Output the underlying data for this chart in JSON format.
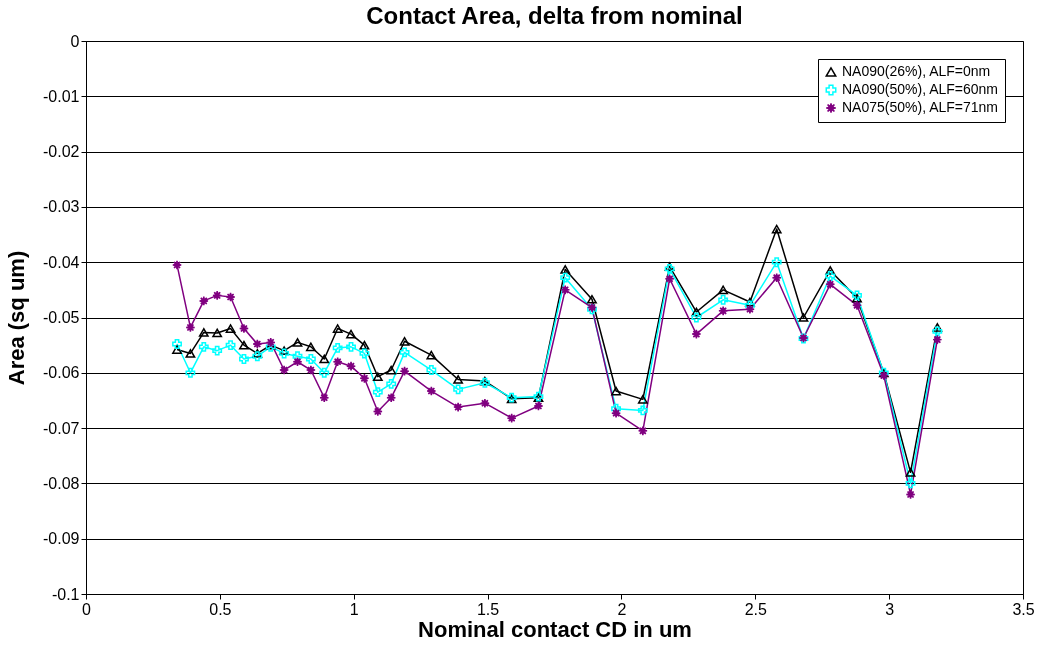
{
  "chart_data": {
    "type": "line",
    "title": "Contact Area, delta from nominal",
    "xlabel": "Nominal contact CD in um",
    "ylabel": "Area (sq um)",
    "x": [
      0.34,
      0.39,
      0.44,
      0.49,
      0.54,
      0.59,
      0.64,
      0.69,
      0.74,
      0.79,
      0.84,
      0.89,
      0.94,
      0.99,
      1.04,
      1.09,
      1.14,
      1.19,
      1.29,
      1.39,
      1.49,
      1.59,
      1.69,
      1.79,
      1.89,
      1.98,
      2.08,
      2.18,
      2.28,
      2.38,
      2.48,
      2.58,
      2.68,
      2.78,
      2.88,
      2.98,
      3.08,
      3.18
    ],
    "series": [
      {
        "name": "NA090(26%), ALF=0nm",
        "color": "#000000",
        "marker": "triangle",
        "values": [
          -0.0558,
          -0.0565,
          -0.0527,
          -0.0528,
          -0.052,
          -0.055,
          -0.0565,
          -0.055,
          -0.056,
          -0.0545,
          -0.0553,
          -0.0575,
          -0.052,
          -0.053,
          -0.055,
          -0.0607,
          -0.0595,
          -0.0543,
          -0.0568,
          -0.0612,
          -0.0615,
          -0.0647,
          -0.0645,
          -0.0413,
          -0.0467,
          -0.0633,
          -0.0648,
          -0.0408,
          -0.049,
          -0.045,
          -0.0472,
          -0.034,
          -0.05,
          -0.0415,
          -0.0465,
          -0.06,
          -0.078,
          -0.0518
        ]
      },
      {
        "name": "NA090(50%), ALF=60nm",
        "color": "#00ffff",
        "marker": "cross",
        "values": [
          -0.0548,
          -0.06,
          -0.0553,
          -0.056,
          -0.055,
          -0.0575,
          -0.057,
          -0.0553,
          -0.0565,
          -0.057,
          -0.0575,
          -0.06,
          -0.0555,
          -0.0553,
          -0.0565,
          -0.0635,
          -0.062,
          -0.0563,
          -0.0595,
          -0.063,
          -0.0618,
          -0.0645,
          -0.0643,
          -0.0428,
          -0.0485,
          -0.0665,
          -0.0668,
          -0.0412,
          -0.05,
          -0.0468,
          -0.0478,
          -0.04,
          -0.0538,
          -0.0425,
          -0.046,
          -0.06,
          -0.08,
          -0.0525
        ]
      },
      {
        "name": "NA075(50%), ALF=71nm",
        "color": "#800080",
        "marker": "star",
        "values": [
          -0.0405,
          -0.0518,
          -0.047,
          -0.046,
          -0.0463,
          -0.052,
          -0.0548,
          -0.0545,
          -0.0595,
          -0.058,
          -0.0595,
          -0.0645,
          -0.058,
          -0.0588,
          -0.061,
          -0.067,
          -0.0645,
          -0.0597,
          -0.0633,
          -0.0662,
          -0.0655,
          -0.0682,
          -0.066,
          -0.045,
          -0.0482,
          -0.0673,
          -0.0705,
          -0.043,
          -0.053,
          -0.0488,
          -0.0485,
          -0.0428,
          -0.0537,
          -0.044,
          -0.0478,
          -0.0605,
          -0.082,
          -0.054
        ]
      }
    ],
    "xlim": [
      0,
      3.5
    ],
    "xticks": [
      0,
      0.5,
      1,
      1.5,
      2,
      2.5,
      3,
      3.5
    ],
    "ylim": [
      -0.1,
      0
    ],
    "yticks": [
      -0.1,
      -0.09,
      -0.08,
      -0.07,
      -0.06,
      -0.05,
      -0.04,
      -0.03,
      -0.02,
      -0.01,
      0
    ],
    "grid": "y",
    "legend": "top right",
    "line_style": "solid"
  }
}
